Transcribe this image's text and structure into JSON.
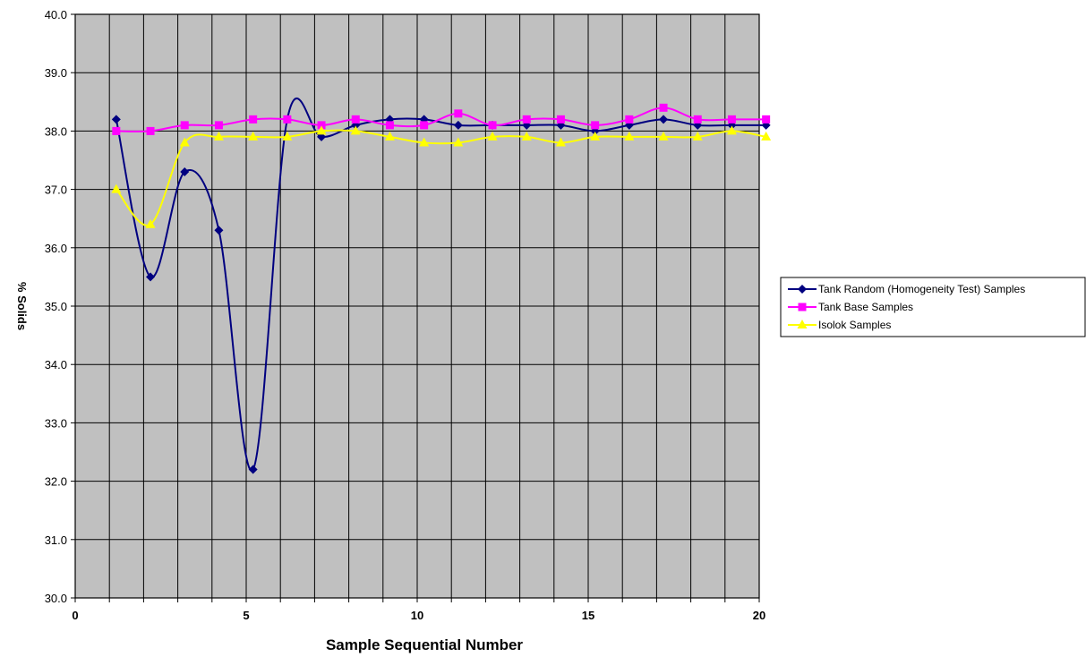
{
  "chart_data": {
    "type": "line",
    "title": "",
    "xlabel": "Sample Sequential Number",
    "ylabel": "% Solids",
    "xlim": [
      0,
      20
    ],
    "ylim": [
      30.0,
      40.0
    ],
    "x_ticks": [
      "0",
      "5",
      "10",
      "15",
      "20"
    ],
    "y_ticks": [
      "30.0",
      "31.0",
      "32.0",
      "33.0",
      "34.0",
      "35.0",
      "36.0",
      "37.0",
      "38.0",
      "39.0",
      "40.0"
    ],
    "grid": true,
    "plot_background": "#c0c0c0",
    "smooth": true,
    "legend_position": "right",
    "series": [
      {
        "name": "Tank Random (Homogeneity Test) Samples",
        "color": "#000080",
        "marker": "diamond",
        "x": [
          1,
          2,
          3,
          4,
          5,
          6,
          7,
          8,
          9,
          10,
          11,
          12,
          13,
          14,
          15,
          16,
          17,
          18,
          19,
          20
        ],
        "values": [
          38.2,
          35.5,
          37.3,
          36.3,
          32.2,
          38.2,
          37.9,
          38.1,
          38.2,
          38.2,
          38.1,
          38.1,
          38.1,
          38.1,
          38.0,
          38.1,
          38.2,
          38.1,
          38.1,
          38.1
        ]
      },
      {
        "name": "Tank Base Samples",
        "color": "#ff00ff",
        "marker": "square",
        "x": [
          1,
          2,
          3,
          4,
          5,
          6,
          7,
          8,
          9,
          10,
          11,
          12,
          13,
          14,
          15,
          16,
          17,
          18,
          19,
          20
        ],
        "values": [
          38.0,
          38.0,
          38.1,
          38.1,
          38.2,
          38.2,
          38.1,
          38.2,
          38.1,
          38.1,
          38.3,
          38.1,
          38.2,
          38.2,
          38.1,
          38.2,
          38.4,
          38.2,
          38.2,
          38.2
        ]
      },
      {
        "name": "Isolok Samples",
        "color": "#ffff00",
        "marker": "triangle",
        "x": [
          1,
          2,
          3,
          4,
          5,
          6,
          7,
          8,
          9,
          10,
          11,
          12,
          13,
          14,
          15,
          16,
          17,
          18,
          19,
          20
        ],
        "values": [
          37.0,
          36.4,
          37.8,
          37.9,
          37.9,
          37.9,
          38.0,
          38.0,
          37.9,
          37.8,
          37.8,
          37.9,
          37.9,
          37.8,
          37.9,
          37.9,
          37.9,
          37.9,
          38.0,
          37.9
        ]
      }
    ]
  }
}
